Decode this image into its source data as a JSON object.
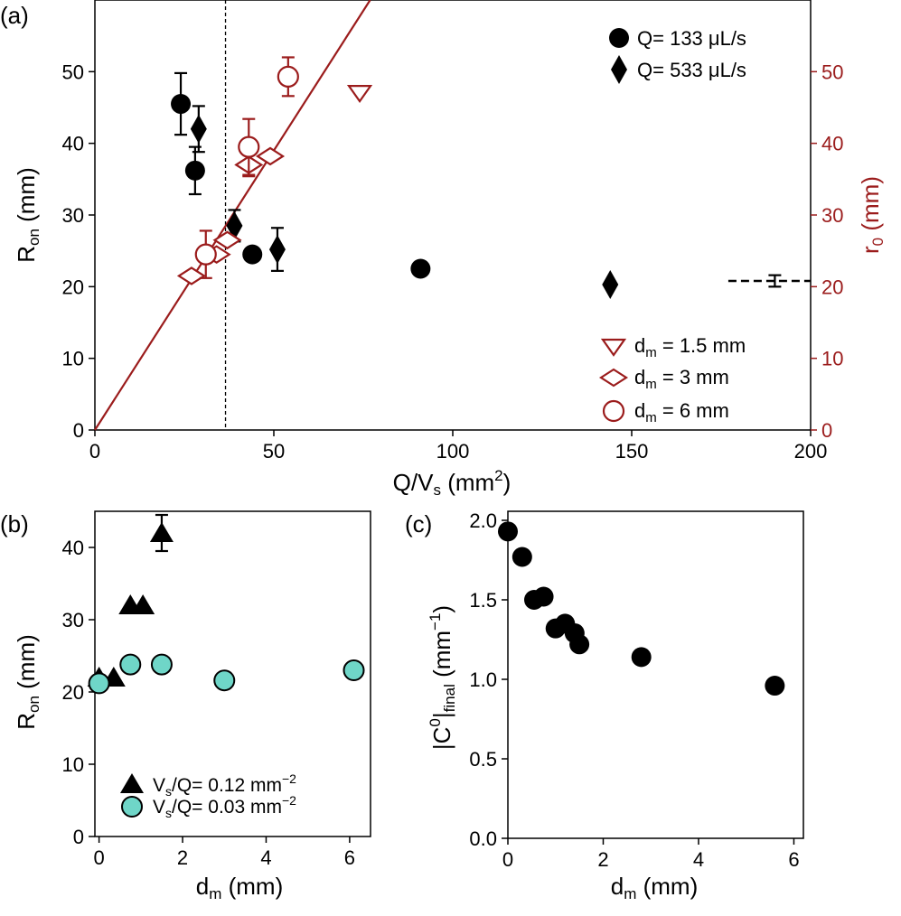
{
  "colors": {
    "black": "#000000",
    "red": "#9b1c1c",
    "teal": "#6fd6c8"
  },
  "chart_data": [
    {
      "panel": "(a)",
      "type": "scatter",
      "xlabel": "Q/V",
      "xlabel_sub": "s",
      "xlabel_rest": " (mm",
      "xlabel_sup": "2",
      "xlabel_end": ")",
      "ylabel": "R",
      "ylabel_sub": "on",
      "ylabel_rest": " (mm)",
      "y2label": "r",
      "y2label_sub": "0",
      "y2label_rest": " (mm)",
      "xlim": [
        0,
        200
      ],
      "ylim": [
        0,
        60
      ],
      "y2lim": [
        0,
        60
      ],
      "xticks": [
        "0",
        "50",
        "100",
        "150",
        "200"
      ],
      "yticks": [
        "0",
        "10",
        "20",
        "30",
        "40",
        "50"
      ],
      "y2ticks": [
        "0",
        "10",
        "20",
        "30",
        "40",
        "50"
      ],
      "vline_x": 36.5,
      "fit_line": {
        "slope": 0.78,
        "intercept": 0
      },
      "legend_top": [
        {
          "marker": "circle",
          "q": "Q",
          "label": "=  133  μL/s"
        },
        {
          "marker": "diamond",
          "q": "Q",
          "label": "=  533  μL/s"
        }
      ],
      "legend_bottom": [
        {
          "marker": "triangle-down",
          "d": "d",
          "sub": "m",
          "label": " =  1.5 mm"
        },
        {
          "marker": "diamond-open",
          "d": "d",
          "sub": "m",
          "label": " =  3 mm"
        },
        {
          "marker": "circle-open",
          "d": "d",
          "sub": "m",
          "label": " =  6 mm"
        }
      ],
      "series": [
        {
          "name": "Q = 133 μL/s",
          "marker": "circle",
          "x": [
            24,
            28,
            44,
            91
          ],
          "y": [
            45.5,
            36.2,
            24.5,
            22.5
          ],
          "err": [
            4.3,
            3.3,
            0,
            0
          ]
        },
        {
          "name": "Q = 533 μL/s",
          "marker": "diamond",
          "x": [
            29,
            39,
            51,
            144
          ],
          "y": [
            42,
            28.5,
            25.2,
            20.3
          ],
          "err": [
            3.2,
            2.2,
            3.0,
            0
          ]
        },
        {
          "name": "d_m = 1.5 mm",
          "marker": "triangle-down",
          "x": [
            74
          ],
          "y": [
            47
          ],
          "err": [
            0
          ]
        },
        {
          "name": "d_m = 3 mm",
          "marker": "diamond-open",
          "x": [
            27,
            34,
            37,
            43,
            49
          ],
          "y": [
            21.5,
            24.5,
            26.5,
            37,
            38.2
          ],
          "err": [
            0,
            0,
            0,
            1.6,
            0
          ]
        },
        {
          "name": "d_m = 6 mm",
          "marker": "circle-open",
          "x": [
            31,
            43,
            54
          ],
          "y": [
            24.5,
            39.5,
            49.3
          ],
          "err": [
            3.3,
            3.9,
            2.7
          ]
        }
      ],
      "dashed_ref": {
        "x": [
          177,
          200
        ],
        "y": 20.8,
        "x_err_point": 190,
        "err": 0.8
      }
    },
    {
      "panel": "(b)",
      "type": "scatter",
      "xlabel": "d",
      "xlabel_sub": "m",
      "xlabel_rest": " (mm)",
      "ylabel": "R",
      "ylabel_sub": "on",
      "ylabel_rest": " (mm)",
      "xlim": [
        -0.1,
        6.5
      ],
      "ylim": [
        0,
        45
      ],
      "xticks": [
        "0",
        "2",
        "4",
        "6"
      ],
      "yticks": [
        "0",
        "10",
        "20",
        "30",
        "40"
      ],
      "legend": [
        {
          "marker": "triangle",
          "v": "V",
          "sub": "s",
          "label": "/Q=  0.12 mm",
          "sup": "−2"
        },
        {
          "marker": "circle-teal",
          "v": "V",
          "sub": "s",
          "label": "/Q=  0.03 mm",
          "sup": "−2"
        }
      ],
      "series": [
        {
          "name": "Vs/Q = 0.12 mm^-2",
          "marker": "triangle",
          "x": [
            0,
            0.35,
            0.75,
            1.05,
            1.5
          ],
          "y": [
            22,
            22,
            32,
            32,
            42
          ],
          "err": [
            0,
            0,
            0,
            0,
            2.5
          ]
        },
        {
          "name": "Vs/Q = 0.03 mm^-2",
          "marker": "circle-teal",
          "x": [
            0,
            0.75,
            1.5,
            3,
            6.1
          ],
          "y": [
            21.2,
            23.8,
            23.8,
            21.6,
            23
          ]
        }
      ]
    },
    {
      "panel": "(c)",
      "type": "scatter",
      "xlabel": "d",
      "xlabel_sub": "m",
      "xlabel_rest": " (mm)",
      "ylabel": "|C",
      "ylabel_sup": "0",
      "ylabel_mid": "|",
      "ylabel_sub": "final",
      "ylabel_rest": " (mm",
      "ylabel_sup2": "−1",
      "ylabel_end": ")",
      "xlim": [
        0,
        6.2
      ],
      "ylim": [
        0,
        2.0
      ],
      "xticks": [
        "0",
        "2",
        "4",
        "6"
      ],
      "yticks": [
        "0.0",
        "0.5",
        "1.0",
        "1.5",
        "2.0"
      ],
      "series": [
        {
          "name": "|C0|final",
          "marker": "circle",
          "x": [
            0,
            0.3,
            0.55,
            0.75,
            1.0,
            1.2,
            1.4,
            1.5,
            2.8,
            5.6
          ],
          "y": [
            1.93,
            1.77,
            1.5,
            1.52,
            1.32,
            1.35,
            1.29,
            1.22,
            1.14,
            0.96
          ]
        }
      ]
    }
  ]
}
